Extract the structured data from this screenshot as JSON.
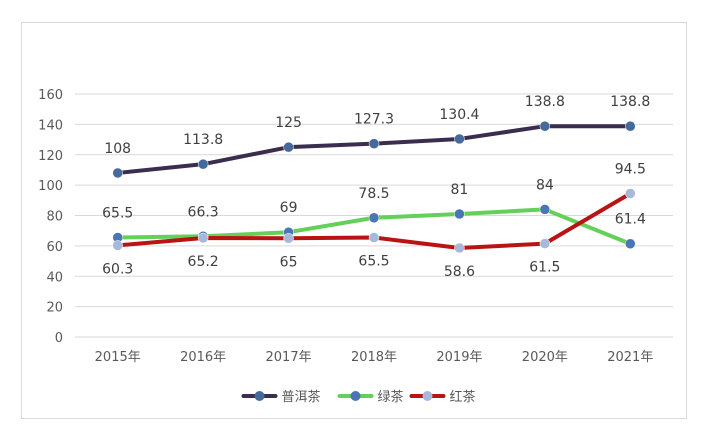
{
  "chart_data": {
    "type": "line",
    "categories": [
      "2015年",
      "2016年",
      "2017年",
      "2018年",
      "2019年",
      "2020年",
      "2021年"
    ],
    "series": [
      {
        "name": "普洱茶",
        "values": [
          108,
          113.8,
          125,
          127.3,
          130.4,
          138.8,
          138.8
        ],
        "color": "#3b2d4f",
        "marker": "#45699b"
      },
      {
        "name": "绿茶",
        "values": [
          65.5,
          66.3,
          69,
          78.5,
          81,
          84,
          61.4
        ],
        "color": "#63d05a",
        "marker": "#4a76b5"
      },
      {
        "name": "红茶",
        "values": [
          60.3,
          65.2,
          65,
          65.5,
          58.6,
          61.5,
          94.5
        ],
        "color": "#b81414",
        "marker": "#a7b8db"
      }
    ],
    "ylim": [
      0,
      160
    ],
    "yticks": [
      0,
      20,
      40,
      60,
      80,
      100,
      120,
      140,
      160
    ],
    "grid": true,
    "legend": "bottom"
  }
}
